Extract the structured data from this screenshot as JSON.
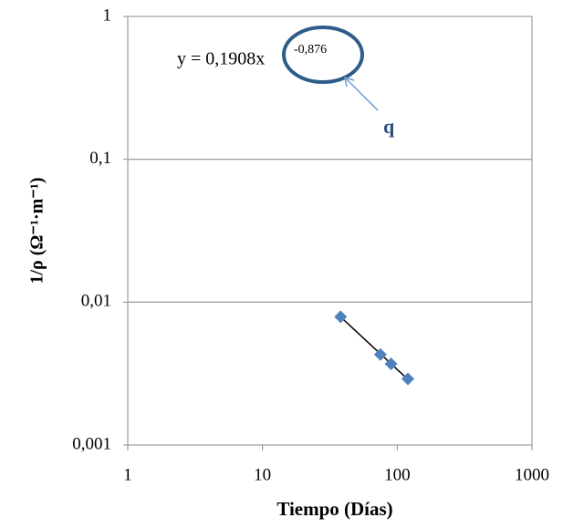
{
  "chart_data": {
    "type": "scatter",
    "x_label": "Tiempo (Días)",
    "y_label": "1/ρ (Ω⁻¹·m⁻¹)",
    "x": [
      38,
      75,
      90,
      120
    ],
    "series": [
      {
        "color": "#4f81bd",
        "values": [
          0.0079,
          0.0043,
          0.0037,
          0.0029
        ]
      }
    ],
    "xlim": [
      1,
      1000
    ],
    "ylim": [
      0.001,
      1
    ],
    "xticks": [
      1,
      10,
      100,
      1000
    ],
    "yticks": [
      {
        "value": 0.001,
        "label": "0,001"
      },
      {
        "value": 0.01,
        "label": "0,01"
      },
      {
        "value": 0.1,
        "label": "0,1"
      },
      1
    ],
    "log_x": true,
    "log_y": true,
    "grid": true,
    "trendline": {
      "type": "power",
      "coefficient": 0.1908,
      "exponent": -0.876,
      "label": "y = 0,1908x",
      "exponent_label": "-0,876",
      "color": "#000000"
    },
    "annotation": "q"
  }
}
